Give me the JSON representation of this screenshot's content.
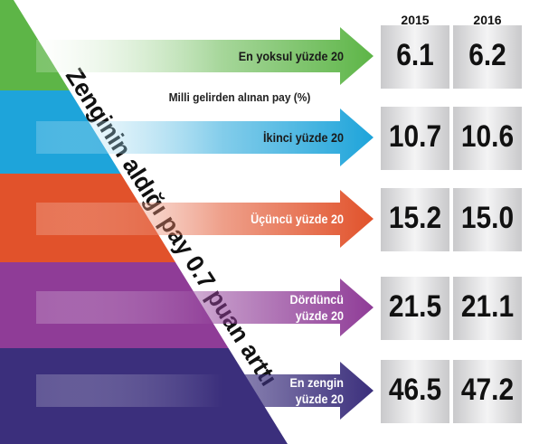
{
  "header": {
    "title": "Zenginin aldığı pay 0.7 puan arttı",
    "subtitle": "Milli gelirden alınan pay (%)",
    "columns": [
      "2015",
      "2016"
    ]
  },
  "rows": [
    {
      "label": "En yoksul yüzde 20",
      "values": [
        "6.1",
        "6.2"
      ]
    },
    {
      "label": "İkinci yüzde 20",
      "values": [
        "10.7",
        "10.6"
      ]
    },
    {
      "label": "Üçüncü yüzde 20",
      "values": [
        "15.2",
        "15.0"
      ]
    },
    {
      "label": "Dördüncü yüzde 20",
      "values": [
        "21.5",
        "21.1"
      ]
    },
    {
      "label": "En zengin yüzde 20",
      "values": [
        "46.5",
        "47.2"
      ]
    }
  ]
}
